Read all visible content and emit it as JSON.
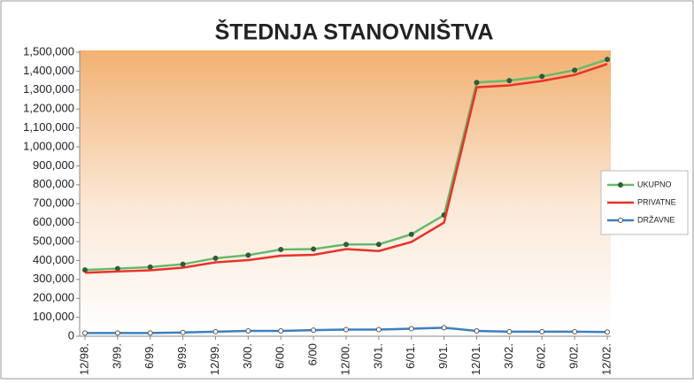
{
  "chart_data": {
    "type": "line",
    "title": "ŠTEDNJA STANOVNIŠTVA",
    "categories": [
      "12/98.",
      "3/99.",
      "6/99.",
      "9/99.",
      "12/99.",
      "3/00.",
      "6/00.",
      "6/00",
      "12/00.",
      "3/01.",
      "6/01.",
      "9/01.",
      "12/01.",
      "3/02.",
      "6/02.",
      "9/02.",
      "12/02."
    ],
    "series": [
      {
        "name": "UKUPNO",
        "color": "#6ab86a",
        "values": [
          350000,
          357000,
          365000,
          380000,
          412000,
          428000,
          458000,
          460000,
          485000,
          485000,
          538000,
          640000,
          1340000,
          1350000,
          1372000,
          1405000,
          1462000
        ]
      },
      {
        "name": "PRIVATNE",
        "color": "#e8322a",
        "values": [
          335000,
          342000,
          348000,
          362000,
          390000,
          402000,
          425000,
          430000,
          460000,
          450000,
          498000,
          600000,
          1315000,
          1325000,
          1348000,
          1380000,
          1438000
        ]
      },
      {
        "name": "DRŽAVNE",
        "color": "#3d7fc1",
        "values": [
          17000,
          17000,
          17000,
          20000,
          24000,
          28000,
          28000,
          32000,
          35000,
          35000,
          40000,
          45000,
          28000,
          24000,
          24000,
          24000,
          22000
        ]
      }
    ],
    "ylim": [
      0,
      1500000
    ],
    "yticks": [
      0,
      {
        "value": 100000,
        "label": "100,000"
      },
      {
        "value": 200000,
        "label": "200,000"
      },
      {
        "value": 300000,
        "label": "300,000"
      },
      {
        "value": 400000,
        "label": "400,000"
      },
      {
        "value": 500000,
        "label": "500,000"
      },
      {
        "value": 600000,
        "label": "600,000"
      },
      {
        "value": 700000,
        "label": "700,000"
      },
      {
        "value": 800000,
        "label": "800,000"
      },
      {
        "value": 900000,
        "label": "900,000"
      },
      {
        "value": 1000000,
        "label": "1,000,000"
      },
      {
        "value": 1100000,
        "label": "1,100,000"
      },
      {
        "value": 1200000,
        "label": "1,200,000"
      },
      {
        "value": 1300000,
        "label": "1,300,000"
      },
      {
        "value": 1400000,
        "label": "1,400,000"
      },
      {
        "value": 1500000,
        "label": "1,500,000"
      }
    ],
    "legend": "right"
  }
}
